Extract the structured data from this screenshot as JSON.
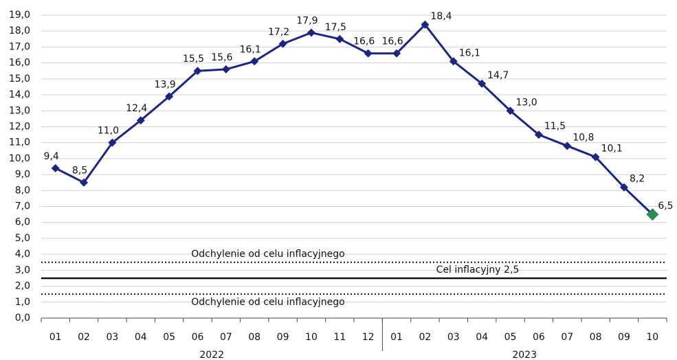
{
  "chart_data": {
    "type": "line",
    "categories": [
      "01",
      "02",
      "03",
      "04",
      "05",
      "06",
      "07",
      "08",
      "09",
      "10",
      "11",
      "12",
      "01",
      "02",
      "03",
      "04",
      "05",
      "06",
      "07",
      "08",
      "09",
      "10"
    ],
    "groups": [
      "2022",
      "2023"
    ],
    "series": [
      {
        "color": "#1c2580",
        "last_color": "#2e8b57",
        "values": [
          9.4,
          8.5,
          11.0,
          12.4,
          13.9,
          15.5,
          15.6,
          16.1,
          17.2,
          17.9,
          17.5,
          16.6,
          16.6,
          18.4,
          16.1,
          14.7,
          13.0,
          11.5,
          10.8,
          10.1,
          8.2,
          6.5
        ],
        "value_labels": [
          "9,4",
          "8,5",
          "11,0",
          "12,4",
          "13,9",
          "15,5",
          "15,6",
          "16,1",
          "17,2",
          "17,9",
          "17,5",
          "16,6",
          "16,6",
          "18,4",
          "16,1",
          "14,7",
          "13,0",
          "11,5",
          "10,8",
          "10,1",
          "8,2",
          "6,5"
        ]
      }
    ],
    "ylim": [
      0,
      19
    ],
    "yticks": [
      {
        "value": 0,
        "label": "0,0"
      },
      {
        "value": 1,
        "label": "1,0"
      },
      {
        "value": 2,
        "label": "2,0"
      },
      {
        "value": 3,
        "label": "3,0"
      },
      {
        "value": 4,
        "label": "4,0"
      },
      {
        "value": 5,
        "label": "5,0"
      },
      {
        "value": 6,
        "label": "6,0"
      },
      {
        "value": 7,
        "label": "7,0"
      },
      {
        "value": 8,
        "label": "8,0"
      },
      {
        "value": 9,
        "label": "9,0"
      },
      {
        "value": 10,
        "label": "10,0"
      },
      {
        "value": 11,
        "label": "11,0"
      },
      {
        "value": 12,
        "label": "12,0"
      },
      {
        "value": 13,
        "label": "13,0"
      },
      {
        "value": 14,
        "label": "14,0"
      },
      {
        "value": 15,
        "label": "15,0"
      },
      {
        "value": 16,
        "label": "16,0"
      },
      {
        "value": 17,
        "label": "17,0"
      },
      {
        "value": 18,
        "label": "18,0"
      },
      {
        "value": 19,
        "label": "19,0"
      }
    ],
    "grid": true,
    "reference_lines": [
      {
        "value": 3.5,
        "label": "Odchylenie od celu inflacyjnego",
        "style": "dotted"
      },
      {
        "value": 2.5,
        "label": "Cel inflacyjny 2,5",
        "style": "solid"
      },
      {
        "value": 1.5,
        "label": "Odchylenie od celu inflacyjnego",
        "style": "dotted"
      }
    ]
  }
}
